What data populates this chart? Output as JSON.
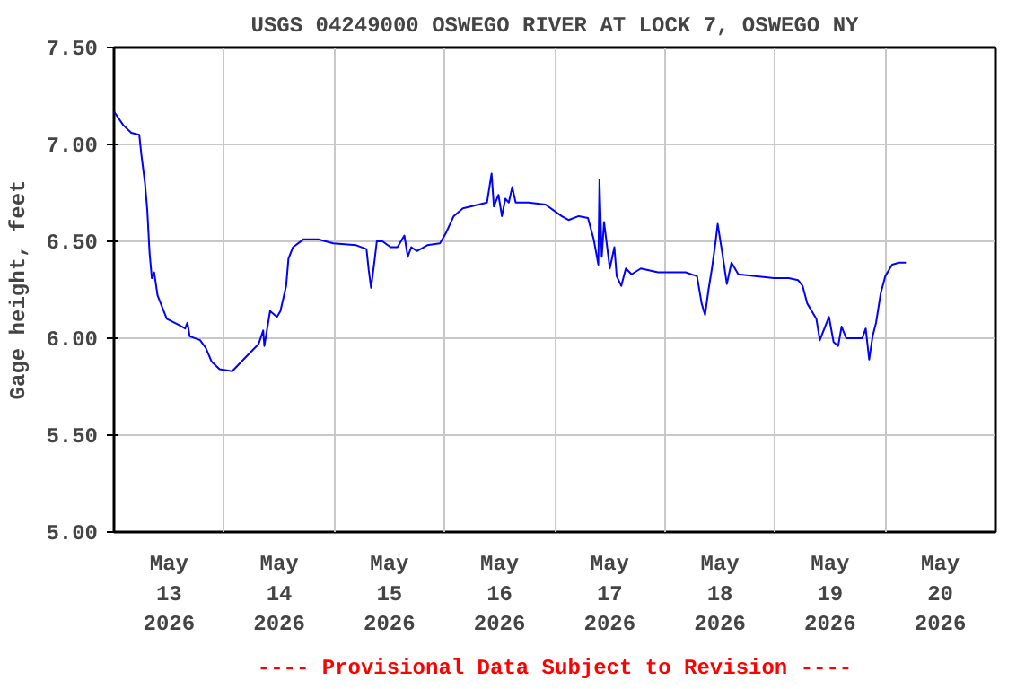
{
  "chart_data": {
    "type": "line",
    "title": "USGS 04249000 OSWEGO RIVER AT LOCK 7, OSWEGO NY",
    "ylabel": "Gage height, feet",
    "annotations": [
      "---- Provisional Data Subject to Revision ----"
    ],
    "series": [
      {
        "color": "#0000ff",
        "x": [
          "2026-05-13T00:00",
          "2026-05-13T02:00",
          "2026-05-13T03:45",
          "2026-05-13T05:30",
          "2026-05-13T06:00",
          "2026-05-13T06:45",
          "2026-05-13T07:15",
          "2026-05-13T07:45",
          "2026-05-13T08:15",
          "2026-05-13T08:45",
          "2026-05-13T09:30",
          "2026-05-13T11:30",
          "2026-05-13T14:00",
          "2026-05-13T15:30",
          "2026-05-13T16:00",
          "2026-05-13T16:30",
          "2026-05-13T18:45",
          "2026-05-13T20:00",
          "2026-05-13T21:15",
          "2026-05-13T23:00",
          "2026-05-14T01:45",
          "2026-05-14T05:00",
          "2026-05-14T07:30",
          "2026-05-14T08:30",
          "2026-05-14T08:45",
          "2026-05-14T10:00",
          "2026-05-14T11:30",
          "2026-05-14T12:15",
          "2026-05-14T13:30",
          "2026-05-14T14:00",
          "2026-05-14T15:00",
          "2026-05-14T17:15",
          "2026-05-14T20:30",
          "2026-05-14T23:45",
          "2026-05-15T04:45",
          "2026-05-15T07:00",
          "2026-05-15T07:30",
          "2026-05-15T08:00",
          "2026-05-15T08:45",
          "2026-05-15T09:15",
          "2026-05-15T10:30",
          "2026-05-15T12:15",
          "2026-05-15T13:45",
          "2026-05-15T15:15",
          "2026-05-15T16:00",
          "2026-05-15T16:45",
          "2026-05-15T18:00",
          "2026-05-15T20:15",
          "2026-05-15T23:00",
          "2026-05-16T00:15",
          "2026-05-16T02:00",
          "2026-05-16T04:00",
          "2026-05-16T09:15",
          "2026-05-16T10:15",
          "2026-05-16T10:45",
          "2026-05-16T11:45",
          "2026-05-16T12:30",
          "2026-05-16T13:15",
          "2026-05-16T14:00",
          "2026-05-16T14:45",
          "2026-05-16T15:30",
          "2026-05-16T18:15",
          "2026-05-16T22:00",
          "2026-05-17T01:30",
          "2026-05-17T03:00",
          "2026-05-17T05:15",
          "2026-05-17T07:15",
          "2026-05-17T08:30",
          "2026-05-17T09:30",
          "2026-05-17T09:45",
          "2026-05-17T10:15",
          "2026-05-17T10:45",
          "2026-05-17T12:00",
          "2026-05-17T13:00",
          "2026-05-17T13:30",
          "2026-05-17T14:30",
          "2026-05-17T15:30",
          "2026-05-17T16:45",
          "2026-05-17T18:45",
          "2026-05-17T22:30",
          "2026-05-18T04:30",
          "2026-05-18T07:00",
          "2026-05-18T08:00",
          "2026-05-18T08:45",
          "2026-05-18T09:30",
          "2026-05-18T10:15",
          "2026-05-18T11:00",
          "2026-05-18T11:30",
          "2026-05-18T12:30",
          "2026-05-18T13:30",
          "2026-05-18T14:30",
          "2026-05-18T16:00",
          "2026-05-18T23:45",
          "2026-05-19T03:00",
          "2026-05-19T05:00",
          "2026-05-19T06:00",
          "2026-05-19T07:00",
          "2026-05-19T09:00",
          "2026-05-19T09:45",
          "2026-05-19T10:45",
          "2026-05-19T11:45",
          "2026-05-19T12:45",
          "2026-05-19T13:45",
          "2026-05-19T14:30",
          "2026-05-19T15:30",
          "2026-05-19T19:00",
          "2026-05-19T19:45",
          "2026-05-19T20:30",
          "2026-05-19T21:15",
          "2026-05-19T22:00",
          "2026-05-19T23:00",
          "2026-05-20T00:00",
          "2026-05-20T01:30",
          "2026-05-20T03:00",
          "2026-05-20T04:30"
        ],
        "values": [
          7.17,
          7.1,
          7.06,
          7.05,
          6.94,
          6.8,
          6.66,
          6.44,
          6.31,
          6.34,
          6.22,
          6.1,
          6.07,
          6.05,
          6.08,
          6.01,
          5.99,
          5.95,
          5.88,
          5.84,
          5.83,
          5.91,
          5.97,
          6.04,
          5.96,
          6.14,
          6.11,
          6.14,
          6.27,
          6.41,
          6.47,
          6.51,
          6.51,
          6.49,
          6.48,
          6.46,
          6.35,
          6.26,
          6.4,
          6.5,
          6.5,
          6.47,
          6.47,
          6.53,
          6.42,
          6.47,
          6.45,
          6.48,
          6.49,
          6.54,
          6.63,
          6.67,
          6.7,
          6.85,
          6.68,
          6.74,
          6.63,
          6.72,
          6.7,
          6.78,
          6.7,
          6.7,
          6.69,
          6.63,
          6.61,
          6.63,
          6.62,
          6.51,
          6.38,
          6.82,
          6.42,
          6.6,
          6.36,
          6.47,
          6.32,
          6.27,
          6.36,
          6.33,
          6.36,
          6.34,
          6.34,
          6.32,
          6.18,
          6.12,
          6.25,
          6.36,
          6.49,
          6.59,
          6.44,
          6.28,
          6.39,
          6.33,
          6.31,
          6.31,
          6.3,
          6.27,
          6.18,
          6.1,
          5.99,
          6.05,
          6.11,
          5.98,
          5.96,
          6.06,
          6.0,
          6.0,
          6.05,
          5.89,
          6.01,
          6.08,
          6.23,
          6.32,
          6.38,
          6.39,
          6.39
        ]
      }
    ],
    "xlim": [
      "2026-05-13T00:00",
      "2026-05-21T00:00"
    ],
    "xticks": [
      {
        "value": "2026-05-13T00:00",
        "label": null
      },
      {
        "value": "2026-05-13T12:00",
        "label": "May\n13\n2026"
      },
      {
        "value": "2026-05-14T00:00",
        "label": null
      },
      {
        "value": "2026-05-14T12:00",
        "label": "May\n14\n2026"
      },
      {
        "value": "2026-05-15T00:00",
        "label": null
      },
      {
        "value": "2026-05-15T12:00",
        "label": "May\n15\n2026"
      },
      {
        "value": "2026-05-16T00:00",
        "label": null
      },
      {
        "value": "2026-05-16T12:00",
        "label": "May\n16\n2026"
      },
      {
        "value": "2026-05-17T00:00",
        "label": null
      },
      {
        "value": "2026-05-17T12:00",
        "label": "May\n17\n2026"
      },
      {
        "value": "2026-05-18T00:00",
        "label": null
      },
      {
        "value": "2026-05-18T12:00",
        "label": "May\n18\n2026"
      },
      {
        "value": "2026-05-19T00:00",
        "label": null
      },
      {
        "value": "2026-05-19T12:00",
        "label": "May\n19\n2026"
      },
      {
        "value": "2026-05-20T00:00",
        "label": null
      },
      {
        "value": "2026-05-20T12:00",
        "label": "May\n20\n2026"
      },
      {
        "value": "2026-05-21T00:00",
        "label": null
      }
    ],
    "ylim": [
      5.0,
      7.5
    ],
    "yticks": [
      {
        "value": 5.0,
        "label": "5.00"
      },
      {
        "value": 5.5,
        "label": "5.50"
      },
      {
        "value": 6.0,
        "label": "6.00"
      },
      {
        "value": 6.5,
        "label": "6.50"
      },
      {
        "value": 7.0,
        "label": "7.00"
      },
      {
        "value": 7.5,
        "label": "7.50"
      }
    ],
    "grid": true
  }
}
